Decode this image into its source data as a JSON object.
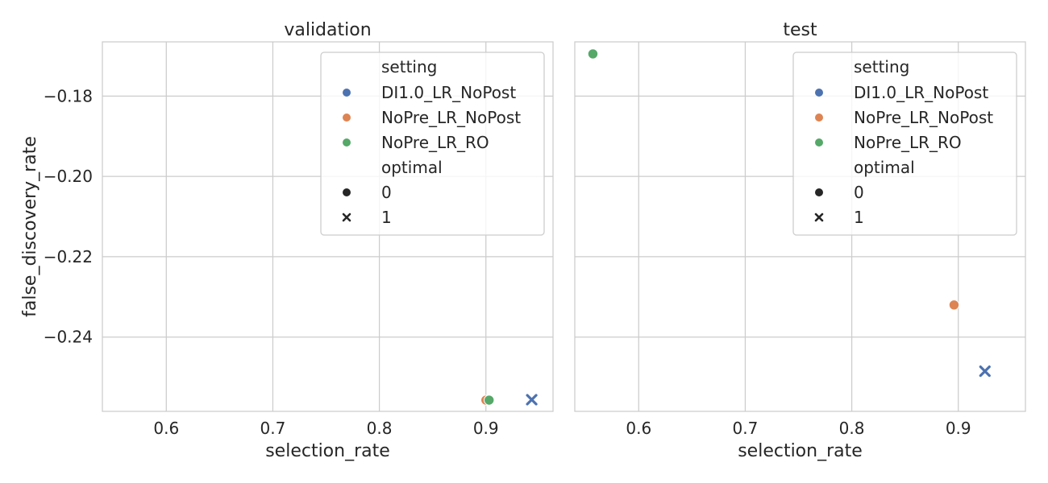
{
  "chart_data": [
    {
      "type": "scatter",
      "title": "validation",
      "xlabel": "selection_rate",
      "ylabel": "false_discovery_rate",
      "xlim": [
        0.54,
        0.963
      ],
      "ylim": [
        -0.2585,
        -0.1665
      ],
      "xticks": [
        0.6,
        0.7,
        0.8,
        0.9
      ],
      "xtick_labels": [
        "0.6",
        "0.7",
        "0.8",
        "0.9"
      ],
      "yticks": [
        -0.18,
        -0.2,
        -0.22,
        -0.24
      ],
      "ytick_labels": [
        "−0.18",
        "−0.20",
        "−0.22",
        "−0.24"
      ],
      "grid": true,
      "legend_placement": "top-right",
      "legend": {
        "hue_title": "setting",
        "hue_entries": [
          {
            "label": "DI1.0_LR_NoPost",
            "color": "#4c72b0"
          },
          {
            "label": "NoPre_LR_NoPost",
            "color": "#dd8452"
          },
          {
            "label": "NoPre_LR_RO",
            "color": "#55a868"
          }
        ],
        "style_title": "optimal",
        "style_entries": [
          {
            "label": "0",
            "marker": "circle"
          },
          {
            "label": "1",
            "marker": "x"
          }
        ]
      },
      "points": [
        {
          "setting": "NoPre_LR_NoPost",
          "optimal": 0,
          "x": 0.9,
          "y": -0.2557
        },
        {
          "setting": "NoPre_LR_RO",
          "optimal": 0,
          "x": 0.903,
          "y": -0.2557
        },
        {
          "setting": "DI1.0_LR_NoPost",
          "optimal": 1,
          "x": 0.943,
          "y": -0.2556
        }
      ]
    },
    {
      "type": "scatter",
      "title": "test",
      "xlabel": "selection_rate",
      "ylabel": "",
      "xlim": [
        0.54,
        0.963
      ],
      "ylim": [
        -0.2585,
        -0.1665
      ],
      "xticks": [
        0.6,
        0.7,
        0.8,
        0.9
      ],
      "xtick_labels": [
        "0.6",
        "0.7",
        "0.8",
        "0.9"
      ],
      "yticks": [
        -0.18,
        -0.2,
        -0.22,
        -0.24
      ],
      "grid": true,
      "legend_placement": "top-right",
      "legend": {
        "hue_title": "setting",
        "hue_entries": [
          {
            "label": "DI1.0_LR_NoPost",
            "color": "#4c72b0"
          },
          {
            "label": "NoPre_LR_NoPost",
            "color": "#dd8452"
          },
          {
            "label": "NoPre_LR_RO",
            "color": "#55a868"
          }
        ],
        "style_title": "optimal",
        "style_entries": [
          {
            "label": "0",
            "marker": "circle"
          },
          {
            "label": "1",
            "marker": "x"
          }
        ]
      },
      "points": [
        {
          "setting": "NoPre_LR_RO",
          "optimal": 0,
          "x": 0.557,
          "y": -0.1695
        },
        {
          "setting": "NoPre_LR_NoPost",
          "optimal": 0,
          "x": 0.896,
          "y": -0.232
        },
        {
          "setting": "DI1.0_LR_NoPost",
          "optimal": 1,
          "x": 0.925,
          "y": -0.2485
        }
      ]
    }
  ]
}
